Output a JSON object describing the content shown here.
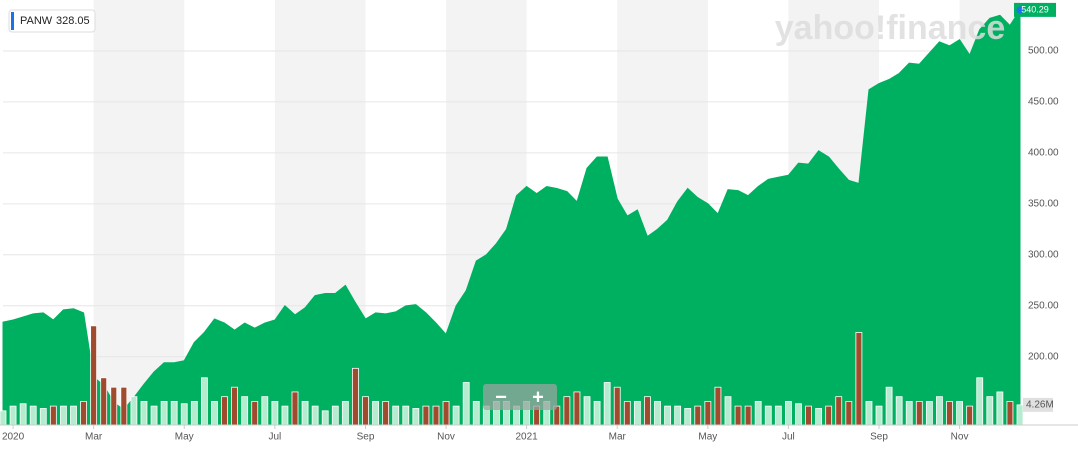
{
  "chart_data": {
    "type": "area",
    "legend": {
      "symbol": "PANW",
      "value": 328.05
    },
    "watermark": "yahoo!finance",
    "zoom": {
      "out": "−",
      "in": "+"
    },
    "categories": [
      null,
      "2020",
      null,
      null,
      null,
      null,
      null,
      null,
      null,
      "Mar",
      null,
      null,
      null,
      null,
      null,
      null,
      null,
      null,
      "May",
      null,
      null,
      null,
      null,
      null,
      null,
      null,
      null,
      "Jul",
      null,
      null,
      null,
      null,
      null,
      null,
      null,
      null,
      "Sep",
      null,
      null,
      null,
      null,
      null,
      null,
      null,
      "Nov",
      null,
      null,
      null,
      null,
      null,
      null,
      null,
      "2021",
      null,
      null,
      null,
      null,
      null,
      null,
      null,
      null,
      "Mar",
      null,
      null,
      null,
      null,
      null,
      null,
      null,
      null,
      "May",
      null,
      null,
      null,
      null,
      null,
      null,
      null,
      "Jul",
      null,
      null,
      null,
      null,
      null,
      null,
      null,
      null,
      "Sep",
      null,
      null,
      null,
      null,
      null,
      null,
      null,
      "Nov",
      null,
      null,
      null,
      null,
      null,
      null
    ],
    "series": [
      {
        "name": "PANW",
        "color": "#00b061",
        "values": [
          234,
          236,
          239,
          242,
          243,
          236,
          246,
          247,
          243,
          180,
          172,
          155,
          148,
          160,
          173,
          185,
          194,
          194,
          196,
          214,
          224,
          237,
          233,
          226,
          233,
          228,
          233,
          236,
          250,
          241,
          248,
          260,
          262,
          262,
          270,
          253,
          237,
          243,
          242,
          244,
          250,
          251,
          243,
          233,
          222,
          250,
          265,
          294,
          300,
          311,
          325,
          358,
          367,
          360,
          367,
          365,
          362,
          352,
          385,
          396,
          396,
          355,
          338,
          344,
          318,
          325,
          334,
          352,
          365,
          356,
          350,
          340,
          364,
          363,
          358,
          367,
          374,
          376,
          378,
          390,
          389,
          402,
          396,
          384,
          373,
          370,
          462,
          468,
          472,
          478,
          488,
          487,
          498,
          509,
          505,
          511,
          496,
          521,
          532,
          535,
          525,
          540.29
        ]
      },
      {
        "axis": "y2",
        "color": "#b5ebce",
        "down_color": "#a04b2e",
        "values": [
          3,
          4,
          4.5,
          4,
          3.5,
          4,
          4,
          4,
          5,
          21,
          10,
          8,
          8,
          6,
          5,
          4,
          5,
          5,
          4.5,
          5,
          10,
          5,
          6,
          8,
          6,
          5,
          6,
          5,
          4,
          7,
          5,
          4,
          3,
          4,
          5,
          12,
          6,
          5,
          5,
          4,
          4,
          3.5,
          4,
          4,
          5,
          4,
          9,
          5,
          4,
          5,
          5,
          4,
          5,
          4,
          5,
          4,
          6,
          7,
          6,
          5,
          9,
          8,
          5,
          5,
          6,
          5,
          4,
          4,
          3.5,
          4,
          5,
          8,
          6,
          4,
          4,
          5,
          4,
          4,
          5,
          4.5,
          4,
          3.5,
          4,
          6,
          5,
          19.6,
          5,
          4,
          8,
          6,
          5,
          5,
          5,
          6,
          5,
          5,
          4,
          10,
          6,
          7,
          5,
          4.26
        ]
      }
    ],
    "ylim": [
      133,
      550
    ],
    "yticks": [
      {
        "value": 200,
        "label": "200.00"
      },
      {
        "value": 250,
        "label": "250.00"
      },
      {
        "value": 300,
        "label": "300.00"
      },
      {
        "value": 350,
        "label": "350.00"
      },
      {
        "value": 400,
        "label": "400.00"
      },
      {
        "value": 450,
        "label": "450.00"
      },
      {
        "value": 500,
        "label": "500.00"
      }
    ],
    "y2lim": [
      0,
      90
    ],
    "y2ticks": [
      {
        "value": 4.26,
        "label": "4.26M"
      }
    ],
    "grid": true
  }
}
